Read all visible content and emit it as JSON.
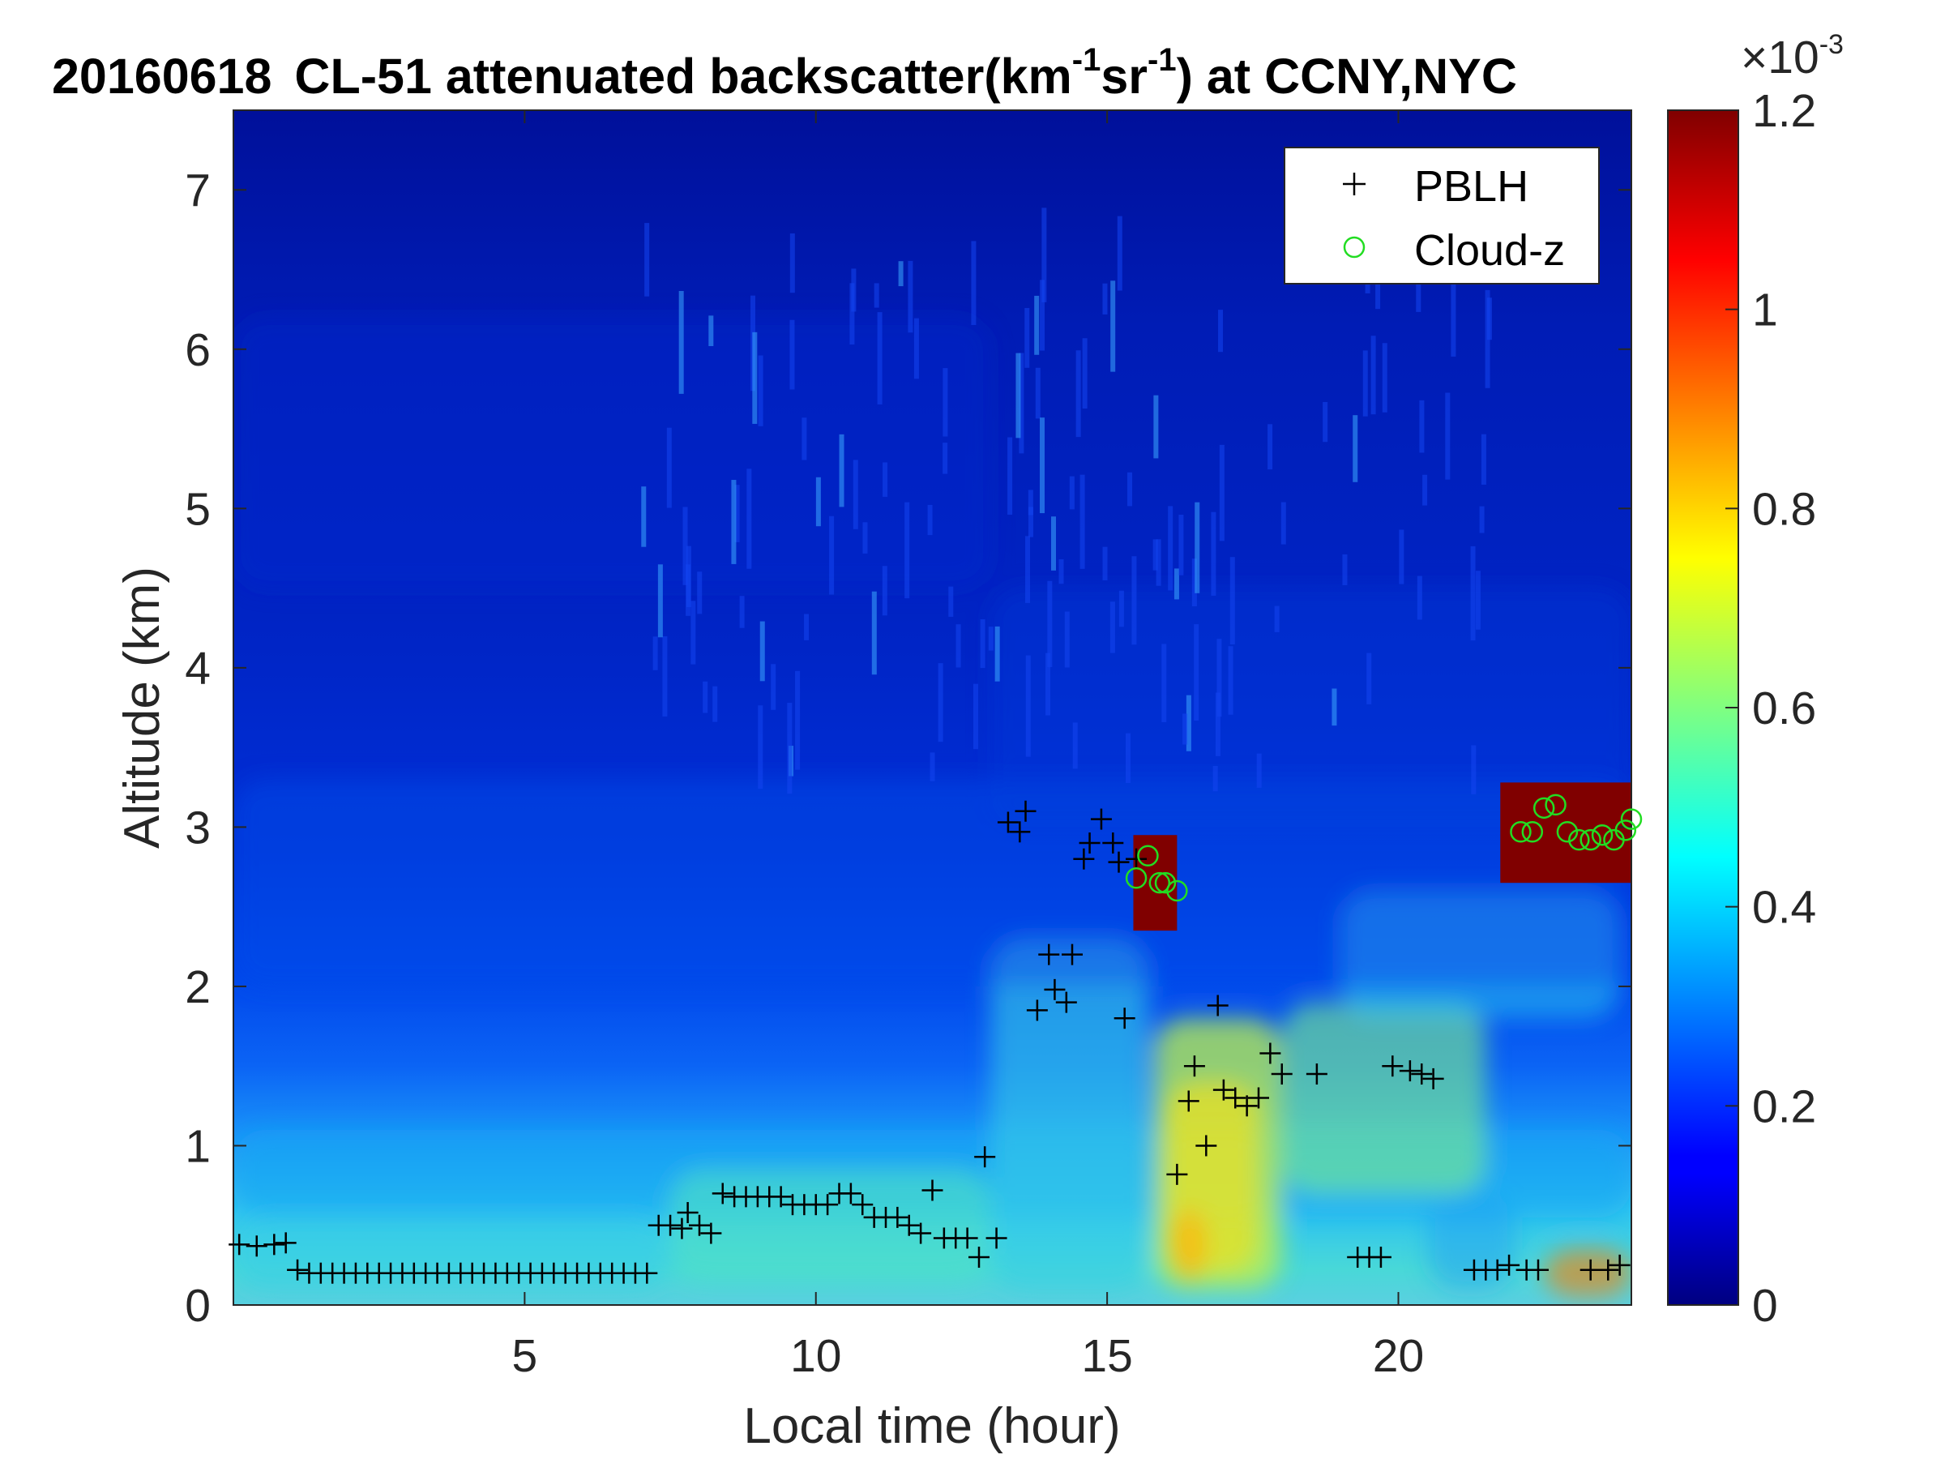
{
  "chart_data": {
    "type": "heatmap",
    "title": {
      "date": "20160618",
      "text": "CL-51 attenuated backscatter(km",
      "sup1": "-1",
      "mid": "sr",
      "sup2": "-1",
      "tail": ") at CCNY,NYC"
    },
    "xlabel": "Local time (hour)",
    "ylabel": "Altitude (km)",
    "xlim": [
      0,
      24
    ],
    "ylim": [
      0,
      7.5
    ],
    "x_ticks": [
      "5",
      "10",
      "15",
      "20"
    ],
    "x_tick_values": [
      5,
      10,
      15,
      20
    ],
    "y_ticks": [
      "0",
      "1",
      "2",
      "3",
      "4",
      "5",
      "6",
      "7"
    ],
    "y_tick_values": [
      0,
      1,
      2,
      3,
      4,
      5,
      6,
      7
    ],
    "colormap": "jet",
    "colorbar": {
      "range": [
        0,
        1.2
      ],
      "ticks": [
        "0",
        "0.2",
        "0.4",
        "0.6",
        "0.8",
        "1",
        "1.2"
      ],
      "tick_values": [
        0,
        0.2,
        0.4,
        0.6,
        0.8,
        1.0,
        1.2
      ],
      "exponent": "×10",
      "exponent_sup": "-3"
    },
    "legend": {
      "position": "top-right",
      "entries": [
        {
          "label": "PBLH",
          "marker": "+",
          "color": "#000000"
        },
        {
          "label": "Cloud-z",
          "marker": "o",
          "color": "#22dd22"
        }
      ]
    },
    "series": [
      {
        "name": "PBLH",
        "marker": "+",
        "color": "#000000",
        "points": [
          [
            0.1,
            0.38
          ],
          [
            0.4,
            0.37
          ],
          [
            0.7,
            0.38
          ],
          [
            0.9,
            0.39
          ],
          [
            1.1,
            0.22
          ],
          [
            1.3,
            0.2
          ],
          [
            1.5,
            0.2
          ],
          [
            1.7,
            0.2
          ],
          [
            1.9,
            0.2
          ],
          [
            2.1,
            0.2
          ],
          [
            2.3,
            0.2
          ],
          [
            2.5,
            0.2
          ],
          [
            2.7,
            0.2
          ],
          [
            2.9,
            0.2
          ],
          [
            3.1,
            0.2
          ],
          [
            3.3,
            0.2
          ],
          [
            3.5,
            0.2
          ],
          [
            3.7,
            0.2
          ],
          [
            3.9,
            0.2
          ],
          [
            4.1,
            0.2
          ],
          [
            4.3,
            0.2
          ],
          [
            4.5,
            0.2
          ],
          [
            4.7,
            0.2
          ],
          [
            4.9,
            0.2
          ],
          [
            5.1,
            0.2
          ],
          [
            5.3,
            0.2
          ],
          [
            5.5,
            0.2
          ],
          [
            5.7,
            0.2
          ],
          [
            5.9,
            0.2
          ],
          [
            6.1,
            0.2
          ],
          [
            6.3,
            0.2
          ],
          [
            6.5,
            0.2
          ],
          [
            6.7,
            0.2
          ],
          [
            6.9,
            0.2
          ],
          [
            7.1,
            0.2
          ],
          [
            7.3,
            0.5
          ],
          [
            7.5,
            0.5
          ],
          [
            7.7,
            0.48
          ],
          [
            7.8,
            0.58
          ],
          [
            8.0,
            0.5
          ],
          [
            8.2,
            0.45
          ],
          [
            8.4,
            0.7
          ],
          [
            8.6,
            0.68
          ],
          [
            8.8,
            0.68
          ],
          [
            9.0,
            0.68
          ],
          [
            9.2,
            0.68
          ],
          [
            9.4,
            0.68
          ],
          [
            9.6,
            0.63
          ],
          [
            9.8,
            0.63
          ],
          [
            10.0,
            0.63
          ],
          [
            10.2,
            0.63
          ],
          [
            10.4,
            0.7
          ],
          [
            10.6,
            0.7
          ],
          [
            10.8,
            0.63
          ],
          [
            11.0,
            0.55
          ],
          [
            11.2,
            0.55
          ],
          [
            11.4,
            0.55
          ],
          [
            11.6,
            0.5
          ],
          [
            11.8,
            0.45
          ],
          [
            12.0,
            0.72
          ],
          [
            12.2,
            0.42
          ],
          [
            12.4,
            0.42
          ],
          [
            12.6,
            0.42
          ],
          [
            12.8,
            0.3
          ],
          [
            12.9,
            0.93
          ],
          [
            13.1,
            0.42
          ],
          [
            13.3,
            3.03
          ],
          [
            13.5,
            2.97
          ],
          [
            13.6,
            3.1
          ],
          [
            13.8,
            1.85
          ],
          [
            14.0,
            2.2
          ],
          [
            14.1,
            1.98
          ],
          [
            14.3,
            1.9
          ],
          [
            14.4,
            2.2
          ],
          [
            14.6,
            2.8
          ],
          [
            14.7,
            2.9
          ],
          [
            14.9,
            3.05
          ],
          [
            15.1,
            2.9
          ],
          [
            15.2,
            2.78
          ],
          [
            15.3,
            1.8
          ],
          [
            15.5,
            2.8
          ],
          [
            16.2,
            0.82
          ],
          [
            16.4,
            1.28
          ],
          [
            16.5,
            1.5
          ],
          [
            16.7,
            1.0
          ],
          [
            16.9,
            1.88
          ],
          [
            17.0,
            1.35
          ],
          [
            17.2,
            1.3
          ],
          [
            17.4,
            1.25
          ],
          [
            17.6,
            1.3
          ],
          [
            17.8,
            1.58
          ],
          [
            18.0,
            1.45
          ],
          [
            18.6,
            1.45
          ],
          [
            19.3,
            0.3
          ],
          [
            19.5,
            0.3
          ],
          [
            19.7,
            0.3
          ],
          [
            19.9,
            1.5
          ],
          [
            20.2,
            1.47
          ],
          [
            20.4,
            1.45
          ],
          [
            20.6,
            1.42
          ],
          [
            21.3,
            0.22
          ],
          [
            21.5,
            0.22
          ],
          [
            21.7,
            0.22
          ],
          [
            21.9,
            0.25
          ],
          [
            22.2,
            0.22
          ],
          [
            22.4,
            0.22
          ],
          [
            23.3,
            0.22
          ],
          [
            23.6,
            0.22
          ],
          [
            23.8,
            0.25
          ]
        ]
      },
      {
        "name": "Cloud-z",
        "marker": "o",
        "color": "#22dd22",
        "points": [
          [
            15.5,
            2.68
          ],
          [
            15.7,
            2.82
          ],
          [
            15.9,
            2.65
          ],
          [
            16.0,
            2.65
          ],
          [
            16.2,
            2.6
          ],
          [
            22.1,
            2.97
          ],
          [
            22.3,
            2.97
          ],
          [
            22.5,
            3.12
          ],
          [
            22.7,
            3.14
          ],
          [
            22.9,
            2.97
          ],
          [
            23.1,
            2.92
          ],
          [
            23.3,
            2.92
          ],
          [
            23.5,
            2.95
          ],
          [
            23.7,
            2.92
          ],
          [
            23.9,
            2.98
          ],
          [
            24.0,
            3.05
          ]
        ]
      }
    ]
  }
}
